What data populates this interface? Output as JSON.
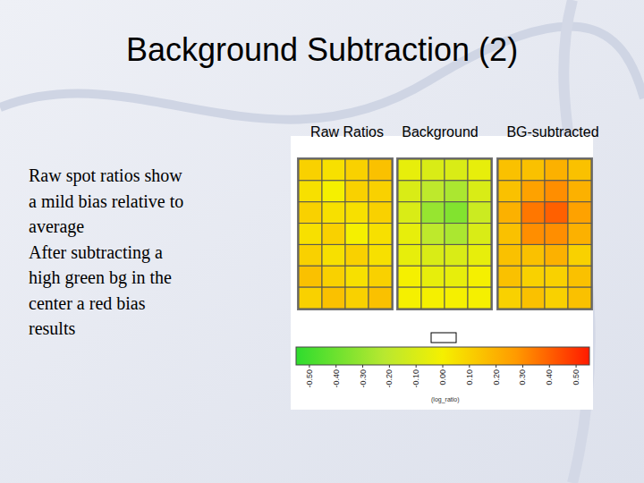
{
  "title": "Background Subtraction (2)",
  "body": [
    "Raw spot ratios show",
    "a mild bias relative to",
    "average",
    "After subtracting a",
    "high green bg in the",
    "center a red bias",
    "results"
  ],
  "chart_data": [
    {
      "type": "heatmap",
      "title": "Raw Ratios",
      "cells": [
        [
          0.1,
          0.05,
          0.1,
          0.15
        ],
        [
          0.05,
          0.0,
          0.1,
          0.1
        ],
        [
          0.1,
          0.05,
          0.05,
          0.1
        ],
        [
          0.05,
          0.1,
          0.0,
          0.05
        ],
        [
          0.1,
          0.05,
          0.1,
          0.05
        ],
        [
          0.15,
          0.1,
          0.05,
          0.1
        ],
        [
          0.1,
          0.15,
          0.1,
          0.15
        ]
      ]
    },
    {
      "type": "heatmap",
      "title": "Background",
      "cells": [
        [
          -0.05,
          -0.1,
          -0.1,
          -0.05
        ],
        [
          -0.1,
          -0.2,
          -0.25,
          -0.1
        ],
        [
          -0.1,
          -0.3,
          -0.35,
          -0.15
        ],
        [
          -0.05,
          -0.2,
          -0.25,
          -0.1
        ],
        [
          -0.05,
          -0.1,
          -0.1,
          -0.05
        ],
        [
          0.0,
          -0.05,
          -0.05,
          0.0
        ],
        [
          0.0,
          0.0,
          0.0,
          0.0
        ]
      ]
    },
    {
      "type": "heatmap",
      "title": "BG-subtracted",
      "cells": [
        [
          0.15,
          0.15,
          0.2,
          0.15
        ],
        [
          0.15,
          0.25,
          0.3,
          0.2
        ],
        [
          0.2,
          0.35,
          0.4,
          0.25
        ],
        [
          0.15,
          0.3,
          0.3,
          0.2
        ],
        [
          0.15,
          0.15,
          0.2,
          0.1
        ],
        [
          0.15,
          0.1,
          0.1,
          0.15
        ],
        [
          0.1,
          0.15,
          0.1,
          0.15
        ]
      ]
    }
  ],
  "colorbar": {
    "range": [
      -0.55,
      0.55
    ],
    "ticks": [
      {
        "value": -0.5,
        "label": "-0.50"
      },
      {
        "value": -0.4,
        "label": "-0.40"
      },
      {
        "value": -0.3,
        "label": "-0.30"
      },
      {
        "value": -0.2,
        "label": "-0.20"
      },
      {
        "value": -0.1,
        "label": "-0.10"
      },
      {
        "value": 0,
        "label": "0.00"
      },
      {
        "value": 0.1,
        "label": "0.10"
      },
      {
        "value": 0.2,
        "label": "0.20"
      },
      {
        "value": 0.3,
        "label": "0.30"
      },
      {
        "value": 0.4,
        "label": "0.40"
      },
      {
        "value": 0.5,
        "label": "0.50"
      }
    ],
    "label": "(log_ratio)"
  }
}
